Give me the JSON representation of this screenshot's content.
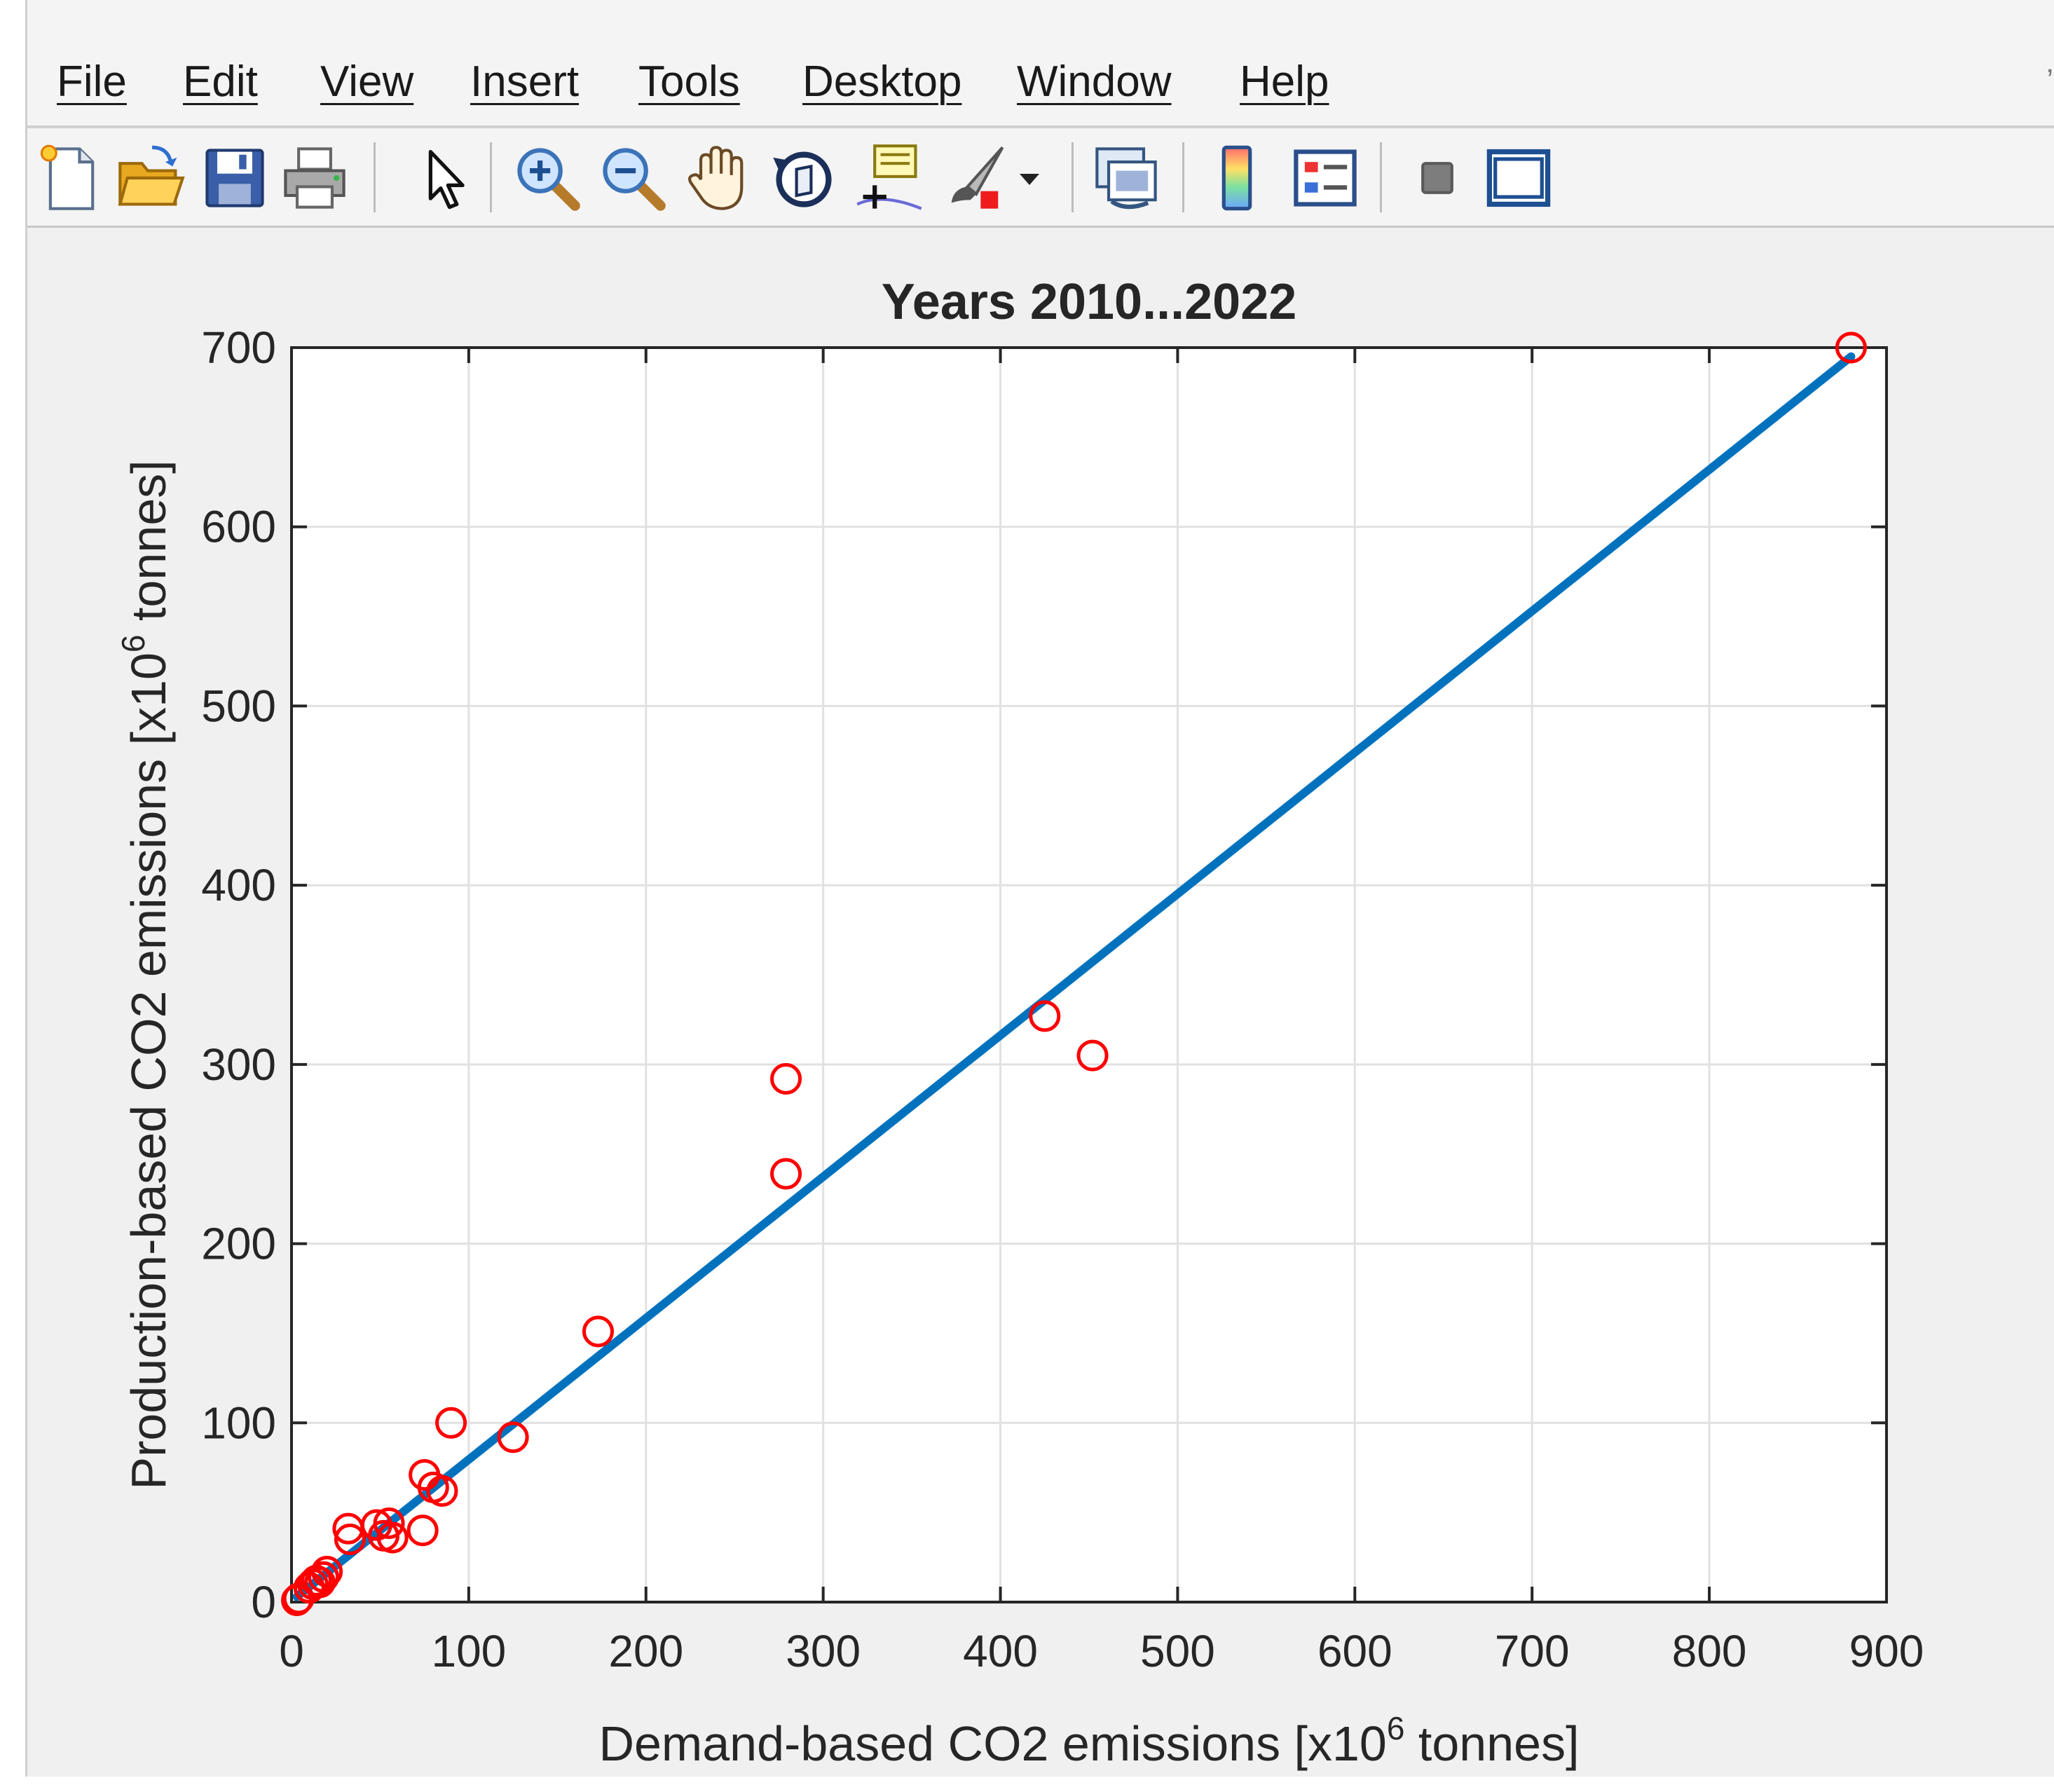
{
  "window": {
    "menu": [
      "File",
      "Edit",
      "View",
      "Insert",
      "Tools",
      "Desktop",
      "Window",
      "Help"
    ],
    "menu_overflow_glyph": "’",
    "toolbar": [
      {
        "name": "new-figure-icon"
      },
      {
        "name": "open-file-icon"
      },
      {
        "name": "save-icon"
      },
      {
        "name": "print-icon"
      },
      {
        "name": "edit-plot-arrow-icon"
      },
      {
        "name": "zoom-in-icon"
      },
      {
        "name": "zoom-out-icon"
      },
      {
        "name": "pan-hand-icon"
      },
      {
        "name": "rotate-3d-icon"
      },
      {
        "name": "data-cursor-icon"
      },
      {
        "name": "brush-icon"
      },
      {
        "name": "brush-dropdown-icon"
      },
      {
        "name": "link-plot-icon"
      },
      {
        "name": "colorbar-icon"
      },
      {
        "name": "legend-icon"
      },
      {
        "name": "hide-plot-tools-icon"
      },
      {
        "name": "show-plot-tools-icon"
      }
    ]
  },
  "chart_data": {
    "type": "scatter",
    "title": "Years 2010...2022",
    "xlabel": "Demand-based CO2 emissions [x10",
    "xlabel_sup": "6",
    "xlabel_tail": " tonnes]",
    "ylabel": "Production-based CO2 emissions [x10",
    "ylabel_sup": "6",
    "ylabel_tail": " tonnes]",
    "xlim": [
      0,
      900
    ],
    "ylim": [
      0,
      700
    ],
    "xticks": [
      0,
      100,
      200,
      300,
      400,
      500,
      600,
      700,
      800,
      900
    ],
    "yticks": [
      0,
      100,
      200,
      300,
      400,
      500,
      600,
      700
    ],
    "grid": true,
    "marker_color": "#ff0000",
    "line_color": "#0072bd",
    "series": [
      {
        "marker": "circle",
        "points": [
          [
            880,
            700
          ],
          [
            425,
            327
          ],
          [
            452,
            305
          ],
          [
            279,
            292
          ],
          [
            279,
            239
          ],
          [
            173,
            151
          ],
          [
            90,
            100
          ],
          [
            125,
            92
          ],
          [
            75,
            71
          ],
          [
            80,
            64
          ],
          [
            85,
            62
          ],
          [
            32,
            41
          ],
          [
            33,
            35
          ],
          [
            48,
            43
          ],
          [
            55,
            44
          ],
          [
            52,
            37
          ],
          [
            57,
            36
          ],
          [
            74,
            40
          ],
          [
            20,
            17
          ],
          [
            18,
            14
          ],
          [
            16,
            11
          ],
          [
            14,
            12
          ],
          [
            12,
            10
          ],
          [
            10,
            8
          ],
          [
            4,
            2
          ],
          [
            3,
            1
          ]
        ]
      },
      {
        "type": "line",
        "x": [
          3,
          880
        ],
        "y": [
          3,
          695
        ]
      }
    ]
  }
}
